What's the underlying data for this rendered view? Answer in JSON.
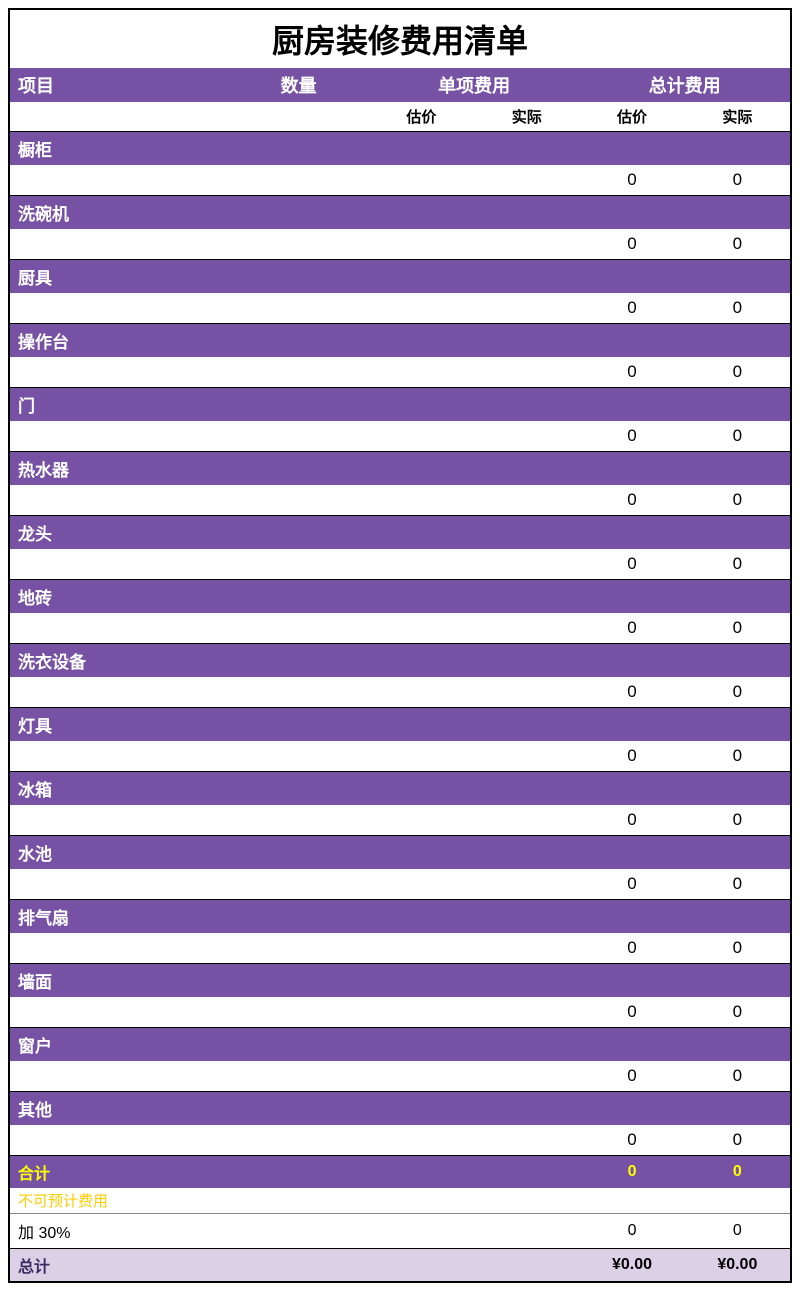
{
  "title": "厨房装修费用清单",
  "headers": {
    "item": "项目",
    "qty": "数量",
    "unit_cost": "单项费用",
    "total_cost": "总计费用",
    "estimated": "估价",
    "actual": "实际"
  },
  "items": [
    {
      "name": "橱柜",
      "est": "0",
      "act": "0"
    },
    {
      "name": "洗碗机",
      "est": "0",
      "act": "0"
    },
    {
      "name": "厨具",
      "est": "0",
      "act": "0"
    },
    {
      "name": "操作台",
      "est": "0",
      "act": "0"
    },
    {
      "name": "门",
      "est": "0",
      "act": "0"
    },
    {
      "name": "热水器",
      "est": "0",
      "act": "0"
    },
    {
      "name": "龙头",
      "est": "0",
      "act": "0"
    },
    {
      "name": "地砖",
      "est": "0",
      "act": "0"
    },
    {
      "name": "洗衣设备",
      "est": "0",
      "act": "0"
    },
    {
      "name": "灯具",
      "est": "0",
      "act": "0"
    },
    {
      "name": "冰箱",
      "est": "0",
      "act": "0"
    },
    {
      "name": "水池",
      "est": "0",
      "act": "0"
    },
    {
      "name": "排气扇",
      "est": "0",
      "act": "0"
    },
    {
      "name": "墙面",
      "est": "0",
      "act": "0"
    },
    {
      "name": "窗户",
      "est": "0",
      "act": "0"
    },
    {
      "name": "其他",
      "est": "0",
      "act": "0"
    }
  ],
  "subtotal": {
    "label": "合计",
    "est": "0",
    "act": "0"
  },
  "contingency": {
    "label": "不可预计费用",
    "line": "加 30%",
    "est": "0",
    "act": "0"
  },
  "total": {
    "label": "总计",
    "est": "¥0.00",
    "act": "¥0.00"
  },
  "colors": {
    "primary": "#7752a4",
    "accent_yellow": "#ffff00",
    "total_bg": "#dcd0e6",
    "total_text": "#3d2b63"
  }
}
